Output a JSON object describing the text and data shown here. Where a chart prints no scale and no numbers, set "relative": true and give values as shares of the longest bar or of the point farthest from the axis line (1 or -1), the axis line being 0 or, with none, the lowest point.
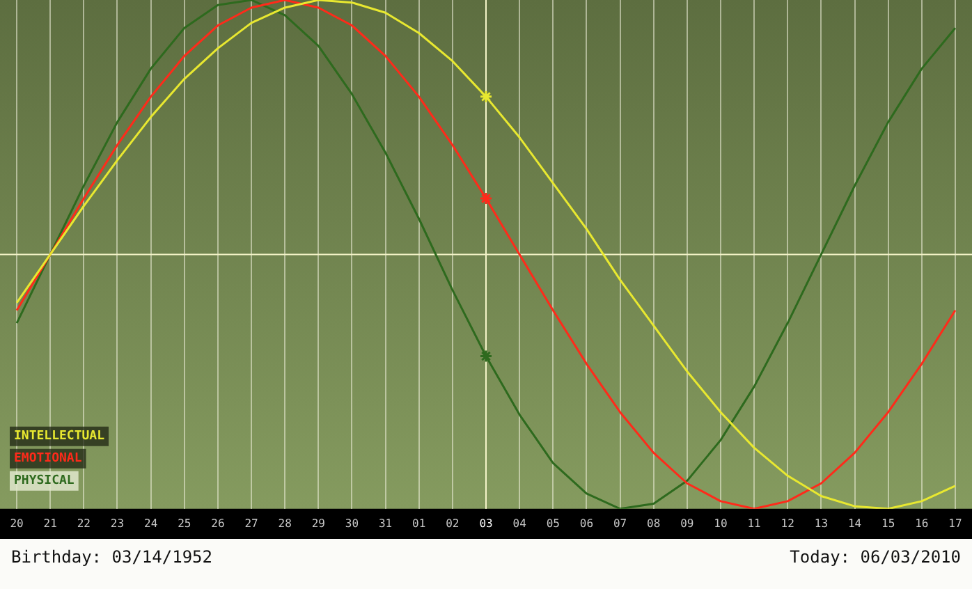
{
  "chart_data": {
    "type": "line",
    "relative": true,
    "categories": [
      "20",
      "21",
      "22",
      "23",
      "24",
      "25",
      "26",
      "27",
      "28",
      "29",
      "30",
      "31",
      "01",
      "02",
      "03",
      "04",
      "05",
      "06",
      "07",
      "08",
      "09",
      "10",
      "11",
      "12",
      "13",
      "14",
      "15",
      "16",
      "17"
    ],
    "series": [
      {
        "name": "INTELLECTUAL",
        "color": "#e8e830",
        "values": [
          -0.19,
          0,
          0.19,
          0.37,
          0.54,
          0.69,
          0.81,
          0.91,
          0.97,
          1.0,
          0.99,
          0.95,
          0.87,
          0.76,
          0.62,
          0.46,
          0.28,
          0.1,
          -0.1,
          -0.28,
          -0.46,
          -0.62,
          -0.76,
          -0.87,
          -0.95,
          -0.99,
          -1.0,
          -0.97,
          -0.91
        ]
      },
      {
        "name": "EMOTIONAL",
        "color": "#ff2a1a",
        "values": [
          -0.22,
          0,
          0.22,
          0.43,
          0.62,
          0.78,
          0.9,
          0.97,
          1.0,
          0.97,
          0.9,
          0.78,
          0.62,
          0.43,
          0.22,
          0,
          -0.22,
          -0.43,
          -0.62,
          -0.78,
          -0.9,
          -0.97,
          -1.0,
          -0.97,
          -0.9,
          -0.78,
          -0.62,
          -0.43,
          -0.22
        ]
      },
      {
        "name": "PHYSICAL",
        "color": "#2e6a1e",
        "values": [
          -0.27,
          0,
          0.27,
          0.52,
          0.73,
          0.89,
          0.98,
          1.0,
          0.94,
          0.82,
          0.63,
          0.4,
          0.14,
          -0.14,
          -0.4,
          -0.63,
          -0.82,
          -0.94,
          -1.0,
          -0.98,
          -0.89,
          -0.73,
          -0.52,
          -0.27,
          0,
          0.27,
          0.52,
          0.73,
          0.89
        ]
      }
    ],
    "ref_lines": [
      {
        "axis": "x",
        "value": "03"
      },
      {
        "axis": "y",
        "value": 0
      }
    ],
    "grid": "x",
    "legend": "bottom left",
    "marker": "none",
    "annotations": [
      "Birthday: 03/14/1952",
      "Today: 06/03/2010"
    ]
  }
}
